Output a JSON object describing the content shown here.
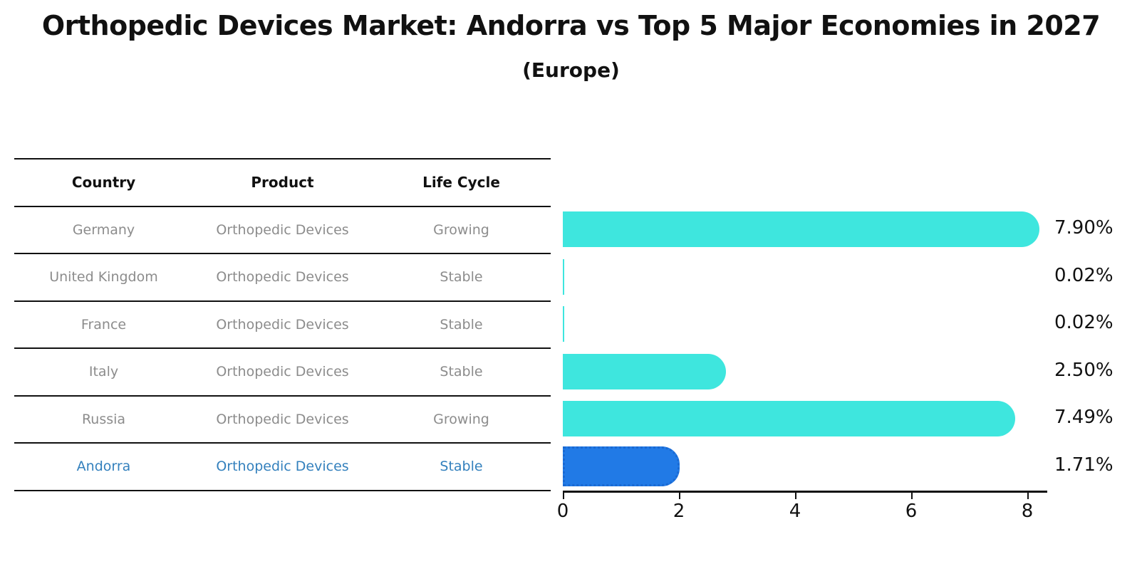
{
  "title": "Orthopedic Devices Market: Andorra vs Top 5 Major Economies in 2027",
  "subtitle": "(Europe)",
  "table": {
    "headers": [
      "Country",
      "Product",
      "Life Cycle"
    ],
    "rows": [
      {
        "country": "Germany",
        "product": "Orthopedic Devices",
        "life_cycle": "Growing",
        "highlight": false
      },
      {
        "country": "United Kingdom",
        "product": "Orthopedic Devices",
        "life_cycle": "Stable",
        "highlight": false
      },
      {
        "country": "France",
        "product": "Orthopedic Devices",
        "life_cycle": "Stable",
        "highlight": false
      },
      {
        "country": "Italy",
        "product": "Orthopedic Devices",
        "life_cycle": "Stable",
        "highlight": false
      },
      {
        "country": "Russia",
        "product": "Orthopedic Devices",
        "life_cycle": "Growing",
        "highlight": false
      },
      {
        "country": "Andorra",
        "product": "Orthopedic Devices",
        "life_cycle": "Stable",
        "highlight": true
      }
    ],
    "row_text_color": "#8c8c8c",
    "header_text_color": "#111111",
    "highlight_text_color": "#3380bd",
    "line_color": "#111111"
  },
  "chart_data": {
    "type": "bar",
    "orientation": "horizontal",
    "title": "Orthopedic Devices Market: Andorra vs Top 5 Major Economies in 2027 (Europe)",
    "categories": [
      "Germany",
      "United Kingdom",
      "France",
      "Italy",
      "Russia",
      "Andorra"
    ],
    "values": [
      7.9,
      0.02,
      0.02,
      2.5,
      7.49,
      1.71
    ],
    "value_labels": [
      "7.90%",
      "0.02%",
      "0.02%",
      "2.50%",
      "7.49%",
      "1.71%"
    ],
    "xlabel": "",
    "ylabel": "",
    "xlim": [
      0,
      8.33
    ],
    "xticks": [
      0,
      2,
      4,
      6,
      8
    ],
    "xticklabels": [
      "0",
      "2",
      "4",
      "6",
      "8"
    ],
    "grid": false,
    "legend": false,
    "highlight_index": 5,
    "bar_color_default": "#3ee6de",
    "bar_color_highlight": "#217ae6",
    "bar_border_highlight": "#1a69d2",
    "value_label_color": "#111111",
    "axis_color": "#111111"
  }
}
